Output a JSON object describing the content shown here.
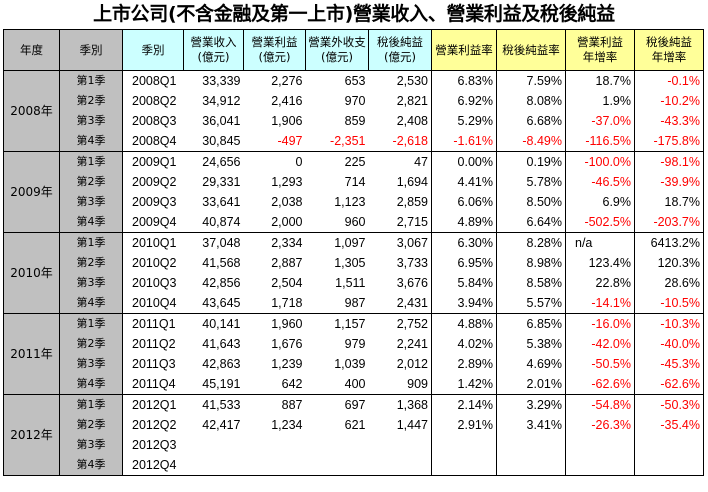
{
  "title": "上市公司(不含金融及第一上市)營業收入、營業利益及稅後純益",
  "headers": {
    "year": "年度",
    "season": "季別",
    "period": "季別",
    "revenue": [
      "營業收入",
      "(億元)"
    ],
    "op_income": [
      "營業利益",
      "(億元)"
    ],
    "non_op": [
      "營業外收支",
      "(億元)"
    ],
    "net_income": [
      "稅後純益",
      "(億元)"
    ],
    "op_margin": "營業利益率",
    "net_margin": "稅後純益率",
    "op_growth": [
      "營業利益",
      "年增率"
    ],
    "net_growth": [
      "稅後純益",
      "年增率"
    ]
  },
  "groups": [
    {
      "year": "2008年",
      "rows": [
        {
          "season": "第1季",
          "period": "2008Q1",
          "revenue": "33,339",
          "op_income": "2,276",
          "non_op": "653",
          "net_income": "2,530",
          "op_margin": "6.83%",
          "net_margin": "7.59%",
          "op_growth": "18.7%",
          "net_growth": "-0.1%"
        },
        {
          "season": "第2季",
          "period": "2008Q2",
          "revenue": "34,912",
          "op_income": "2,416",
          "non_op": "970",
          "net_income": "2,821",
          "op_margin": "6.92%",
          "net_margin": "8.08%",
          "op_growth": "1.9%",
          "net_growth": "-10.2%"
        },
        {
          "season": "第3季",
          "period": "2008Q3",
          "revenue": "36,041",
          "op_income": "1,906",
          "non_op": "859",
          "net_income": "2,408",
          "op_margin": "5.29%",
          "net_margin": "6.68%",
          "op_growth": "-37.0%",
          "net_growth": "-43.3%"
        },
        {
          "season": "第4季",
          "period": "2008Q4",
          "revenue": "30,845",
          "op_income": "-497",
          "non_op": "-2,351",
          "net_income": "-2,618",
          "op_margin": "-1.61%",
          "net_margin": "-8.49%",
          "op_growth": "-116.5%",
          "net_growth": "-175.8%"
        }
      ]
    },
    {
      "year": "2009年",
      "rows": [
        {
          "season": "第1季",
          "period": "2009Q1",
          "revenue": "24,656",
          "op_income": "0",
          "non_op": "225",
          "net_income": "47",
          "op_margin": "0.00%",
          "net_margin": "0.19%",
          "op_growth": "-100.0%",
          "net_growth": "-98.1%"
        },
        {
          "season": "第2季",
          "period": "2009Q2",
          "revenue": "29,331",
          "op_income": "1,293",
          "non_op": "714",
          "net_income": "1,694",
          "op_margin": "4.41%",
          "net_margin": "5.78%",
          "op_growth": "-46.5%",
          "net_growth": "-39.9%"
        },
        {
          "season": "第3季",
          "period": "2009Q3",
          "revenue": "33,641",
          "op_income": "2,038",
          "non_op": "1,123",
          "net_income": "2,859",
          "op_margin": "6.06%",
          "net_margin": "8.50%",
          "op_growth": "6.9%",
          "net_growth": "18.7%"
        },
        {
          "season": "第4季",
          "period": "2009Q4",
          "revenue": "40,874",
          "op_income": "2,000",
          "non_op": "960",
          "net_income": "2,715",
          "op_margin": "4.89%",
          "net_margin": "6.64%",
          "op_growth": "-502.5%",
          "net_growth": "-203.7%"
        }
      ]
    },
    {
      "year": "2010年",
      "rows": [
        {
          "season": "第1季",
          "period": "2010Q1",
          "revenue": "37,048",
          "op_income": "2,334",
          "non_op": "1,097",
          "net_income": "3,067",
          "op_margin": "6.30%",
          "net_margin": "8.28%",
          "op_growth": "n/a",
          "net_growth": "6413.2%"
        },
        {
          "season": "第2季",
          "period": "2010Q2",
          "revenue": "41,568",
          "op_income": "2,887",
          "non_op": "1,305",
          "net_income": "3,733",
          "op_margin": "6.95%",
          "net_margin": "8.98%",
          "op_growth": "123.4%",
          "net_growth": "120.3%"
        },
        {
          "season": "第3季",
          "period": "2010Q3",
          "revenue": "42,856",
          "op_income": "2,504",
          "non_op": "1,511",
          "net_income": "3,676",
          "op_margin": "5.84%",
          "net_margin": "8.58%",
          "op_growth": "22.8%",
          "net_growth": "28.6%"
        },
        {
          "season": "第4季",
          "period": "2010Q4",
          "revenue": "43,645",
          "op_income": "1,718",
          "non_op": "987",
          "net_income": "2,431",
          "op_margin": "3.94%",
          "net_margin": "5.57%",
          "op_growth": "-14.1%",
          "net_growth": "-10.5%"
        }
      ]
    },
    {
      "year": "2011年",
      "rows": [
        {
          "season": "第1季",
          "period": "2011Q1",
          "revenue": "40,141",
          "op_income": "1,960",
          "non_op": "1,157",
          "net_income": "2,752",
          "op_margin": "4.88%",
          "net_margin": "6.85%",
          "op_growth": "-16.0%",
          "net_growth": "-10.3%"
        },
        {
          "season": "第2季",
          "period": "2011Q2",
          "revenue": "41,643",
          "op_income": "1,676",
          "non_op": "979",
          "net_income": "2,241",
          "op_margin": "4.02%",
          "net_margin": "5.38%",
          "op_growth": "-42.0%",
          "net_growth": "-40.0%"
        },
        {
          "season": "第3季",
          "period": "2011Q3",
          "revenue": "42,863",
          "op_income": "1,239",
          "non_op": "1,039",
          "net_income": "2,012",
          "op_margin": "2.89%",
          "net_margin": "4.69%",
          "op_growth": "-50.5%",
          "net_growth": "-45.3%"
        },
        {
          "season": "第4季",
          "period": "2011Q4",
          "revenue": "45,191",
          "op_income": "642",
          "non_op": "400",
          "net_income": "909",
          "op_margin": "1.42%",
          "net_margin": "2.01%",
          "op_growth": "-62.6%",
          "net_growth": "-62.6%"
        }
      ]
    },
    {
      "year": "2012年",
      "rows": [
        {
          "season": "第1季",
          "period": "2012Q1",
          "revenue": "41,533",
          "op_income": "887",
          "non_op": "697",
          "net_income": "1,368",
          "op_margin": "2.14%",
          "net_margin": "3.29%",
          "op_growth": "-54.8%",
          "net_growth": "-50.3%"
        },
        {
          "season": "第2季",
          "period": "2012Q2",
          "revenue": "42,417",
          "op_income": "1,234",
          "non_op": "621",
          "net_income": "1,447",
          "op_margin": "2.91%",
          "net_margin": "3.41%",
          "op_growth": "-26.3%",
          "net_growth": "-35.4%"
        },
        {
          "season": "第3季",
          "period": "2012Q3",
          "revenue": "",
          "op_income": "",
          "non_op": "",
          "net_income": "",
          "op_margin": "",
          "net_margin": "",
          "op_growth": "",
          "net_growth": ""
        },
        {
          "season": "第4季",
          "period": "2012Q4",
          "revenue": "",
          "op_income": "",
          "non_op": "",
          "net_income": "",
          "op_margin": "",
          "net_margin": "",
          "op_growth": "",
          "net_growth": ""
        }
      ]
    }
  ]
}
